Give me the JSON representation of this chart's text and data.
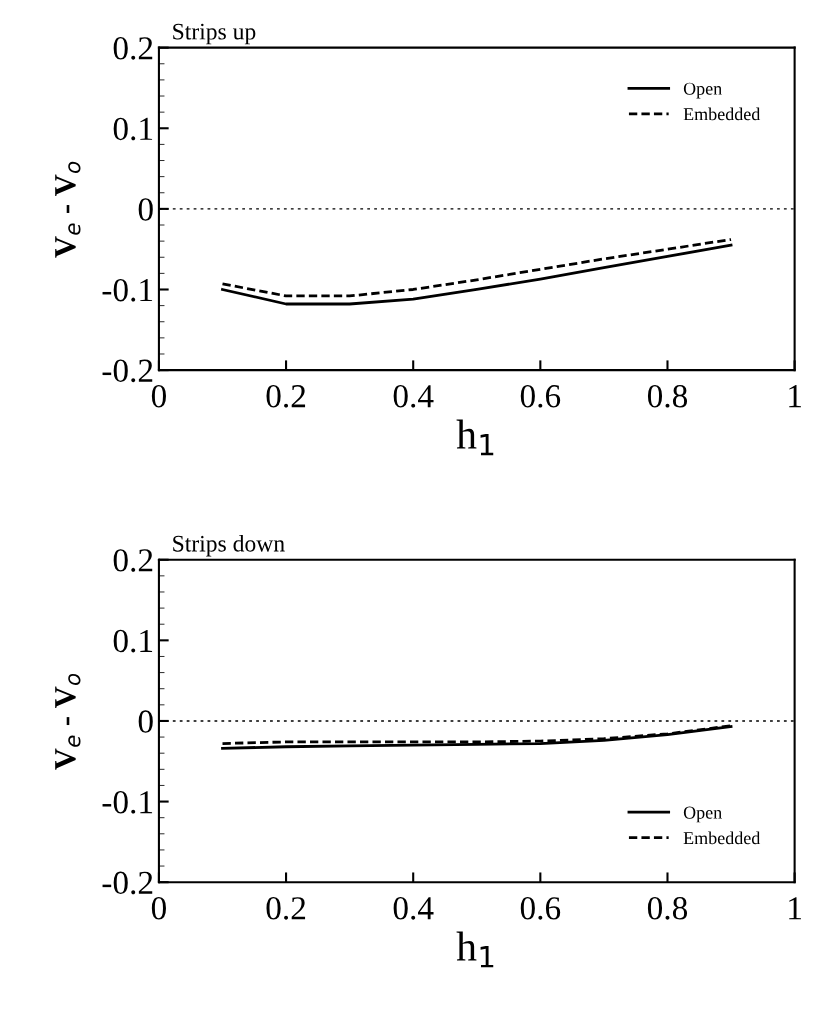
{
  "chart_data": [
    {
      "type": "line",
      "title": "Strips up",
      "xlabel": "h$_{1}$",
      "ylabel": "V$_{e}$ - V$_{o}$",
      "x": [
        0.1,
        0.2,
        0.3,
        0.4,
        0.5,
        0.6,
        0.7,
        0.8,
        0.9
      ],
      "xlim": [
        0,
        1
      ],
      "xticks": [
        0,
        0.2,
        0.4,
        0.6,
        0.8,
        1
      ],
      "ylim": [
        -0.2,
        0.2
      ],
      "yticks": [
        -0.2,
        -0.1,
        0,
        0.1,
        0.2
      ],
      "legend": "top right",
      "grid": false,
      "ref_lines": [
        {
          "axis": "y",
          "value": 0,
          "line_style": "dotted",
          "color": "#000000"
        }
      ],
      "series": [
        {
          "name": "Open",
          "color": "#000000",
          "line_style": "solid",
          "values": [
            -0.1,
            -0.118,
            -0.118,
            -0.112,
            -0.1,
            -0.087,
            -0.073,
            -0.059,
            -0.045
          ]
        },
        {
          "name": "Embedded",
          "color": "#000000",
          "line_style": "dashed",
          "values": [
            -0.093,
            -0.108,
            -0.108,
            -0.1,
            -0.088,
            -0.075,
            -0.062,
            -0.05,
            -0.038
          ]
        }
      ]
    },
    {
      "type": "line",
      "title": "Strips down",
      "xlabel": "h$_{1}$",
      "ylabel": "V$_{e}$ - V$_{o}$",
      "x": [
        0.1,
        0.2,
        0.3,
        0.4,
        0.5,
        0.6,
        0.7,
        0.8,
        0.9
      ],
      "xlim": [
        0,
        1
      ],
      "xticks": [
        0,
        0.2,
        0.4,
        0.6,
        0.8,
        1
      ],
      "ylim": [
        -0.2,
        0.2
      ],
      "yticks": [
        -0.2,
        -0.1,
        0,
        0.1,
        0.2
      ],
      "legend": "bottom right",
      "grid": false,
      "ref_lines": [
        {
          "axis": "y",
          "value": 0,
          "line_style": "dotted",
          "color": "#000000"
        }
      ],
      "series": [
        {
          "name": "Open",
          "color": "#000000",
          "line_style": "solid",
          "values": [
            -0.034,
            -0.032,
            -0.031,
            -0.03,
            -0.029,
            -0.028,
            -0.024,
            -0.017,
            -0.007
          ]
        },
        {
          "name": "Embedded",
          "color": "#000000",
          "line_style": "dashed",
          "values": [
            -0.028,
            -0.026,
            -0.026,
            -0.026,
            -0.026,
            -0.025,
            -0.022,
            -0.016,
            -0.006
          ]
        }
      ]
    }
  ]
}
